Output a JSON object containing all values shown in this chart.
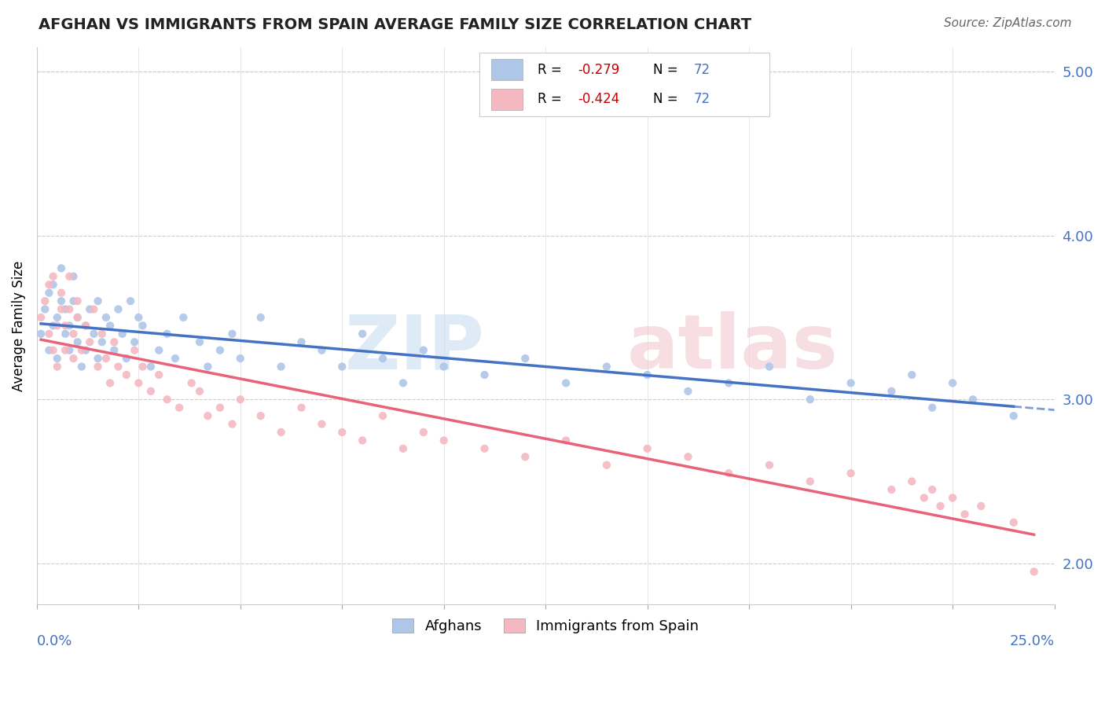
{
  "title": "AFGHAN VS IMMIGRANTS FROM SPAIN AVERAGE FAMILY SIZE CORRELATION CHART",
  "source": "Source: ZipAtlas.com",
  "ylabel": "Average Family Size",
  "xmin": 0.0,
  "xmax": 0.25,
  "ymin": 1.75,
  "ymax": 5.15,
  "right_yticks": [
    2.0,
    3.0,
    4.0,
    5.0
  ],
  "right_ytick_labels": [
    "2.00",
    "3.00",
    "4.00",
    "5.00"
  ],
  "r1": "-0.279",
  "n1": "72",
  "r2": "-0.424",
  "n2": "72",
  "color_afghan": "#aec6e8",
  "color_spain": "#f4b8c1",
  "line_color_afghan": "#4472c4",
  "line_color_spain": "#e8637a",
  "afghans_x": [
    0.001,
    0.002,
    0.003,
    0.003,
    0.004,
    0.004,
    0.005,
    0.005,
    0.006,
    0.006,
    0.007,
    0.007,
    0.008,
    0.008,
    0.009,
    0.009,
    0.01,
    0.01,
    0.011,
    0.012,
    0.012,
    0.013,
    0.014,
    0.015,
    0.015,
    0.016,
    0.017,
    0.018,
    0.019,
    0.02,
    0.021,
    0.022,
    0.023,
    0.024,
    0.025,
    0.026,
    0.028,
    0.03,
    0.032,
    0.034,
    0.036,
    0.04,
    0.042,
    0.045,
    0.048,
    0.05,
    0.055,
    0.06,
    0.065,
    0.07,
    0.075,
    0.08,
    0.085,
    0.09,
    0.095,
    0.1,
    0.11,
    0.12,
    0.13,
    0.14,
    0.15,
    0.16,
    0.17,
    0.18,
    0.19,
    0.2,
    0.21,
    0.215,
    0.22,
    0.225,
    0.23,
    0.24
  ],
  "afghans_y": [
    3.4,
    3.55,
    3.3,
    3.65,
    3.45,
    3.7,
    3.5,
    3.25,
    3.6,
    3.8,
    3.4,
    3.55,
    3.3,
    3.45,
    3.6,
    3.75,
    3.5,
    3.35,
    3.2,
    3.45,
    3.3,
    3.55,
    3.4,
    3.25,
    3.6,
    3.35,
    3.5,
    3.45,
    3.3,
    3.55,
    3.4,
    3.25,
    3.6,
    3.35,
    3.5,
    3.45,
    3.2,
    3.3,
    3.4,
    3.25,
    3.5,
    3.35,
    3.2,
    3.3,
    3.4,
    3.25,
    3.5,
    3.2,
    3.35,
    3.3,
    3.2,
    3.4,
    3.25,
    3.1,
    3.3,
    3.2,
    3.15,
    3.25,
    3.1,
    3.2,
    3.15,
    3.05,
    3.1,
    3.2,
    3.0,
    3.1,
    3.05,
    3.15,
    2.95,
    3.1,
    3.0,
    2.9
  ],
  "spain_x": [
    0.001,
    0.002,
    0.003,
    0.003,
    0.004,
    0.004,
    0.005,
    0.005,
    0.006,
    0.006,
    0.007,
    0.007,
    0.008,
    0.008,
    0.009,
    0.009,
    0.01,
    0.01,
    0.011,
    0.012,
    0.013,
    0.014,
    0.015,
    0.016,
    0.017,
    0.018,
    0.019,
    0.02,
    0.022,
    0.024,
    0.025,
    0.026,
    0.028,
    0.03,
    0.032,
    0.035,
    0.038,
    0.04,
    0.042,
    0.045,
    0.048,
    0.05,
    0.055,
    0.06,
    0.065,
    0.07,
    0.075,
    0.08,
    0.085,
    0.09,
    0.095,
    0.1,
    0.11,
    0.12,
    0.13,
    0.14,
    0.15,
    0.16,
    0.17,
    0.18,
    0.19,
    0.2,
    0.21,
    0.215,
    0.218,
    0.22,
    0.222,
    0.225,
    0.228,
    0.232,
    0.24,
    0.245
  ],
  "spain_y": [
    3.5,
    3.6,
    3.4,
    3.7,
    3.3,
    3.75,
    3.45,
    3.2,
    3.55,
    3.65,
    3.3,
    3.45,
    3.55,
    3.75,
    3.4,
    3.25,
    3.5,
    3.6,
    3.3,
    3.45,
    3.35,
    3.55,
    3.2,
    3.4,
    3.25,
    3.1,
    3.35,
    3.2,
    3.15,
    3.3,
    3.1,
    3.2,
    3.05,
    3.15,
    3.0,
    2.95,
    3.1,
    3.05,
    2.9,
    2.95,
    2.85,
    3.0,
    2.9,
    2.8,
    2.95,
    2.85,
    2.8,
    2.75,
    2.9,
    2.7,
    2.8,
    2.75,
    2.7,
    2.65,
    2.75,
    2.6,
    2.7,
    2.65,
    2.55,
    2.6,
    2.5,
    2.55,
    2.45,
    2.5,
    2.4,
    2.45,
    2.35,
    2.4,
    2.3,
    2.35,
    2.25,
    1.95
  ]
}
